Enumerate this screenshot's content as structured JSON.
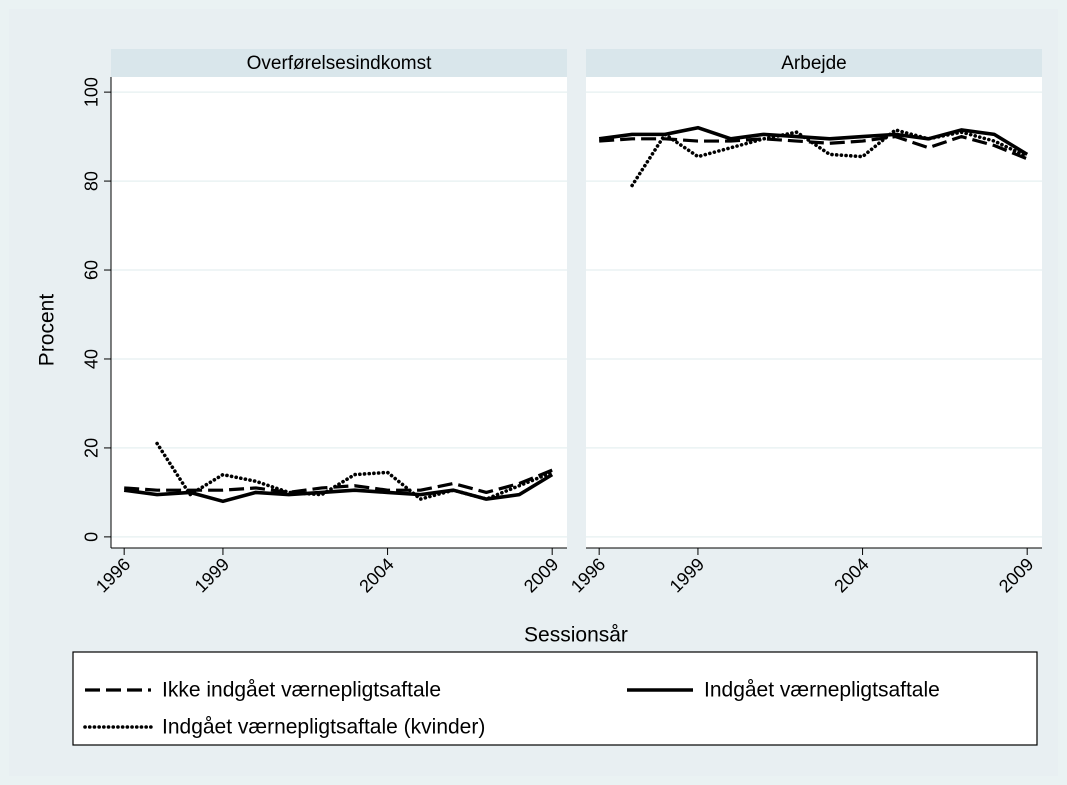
{
  "ylabel": "Procent",
  "xlabel": "Sessionsår",
  "chart_data": [
    {
      "type": "line",
      "title": "Overførelsesindkomst",
      "x": [
        1996,
        1997,
        1998,
        1999,
        2000,
        2001,
        2002,
        2003,
        2004,
        2005,
        2006,
        2007,
        2008,
        2009
      ],
      "xlim": [
        1995.6,
        2009.45
      ],
      "xticks": [
        1996,
        1999,
        2004,
        2009
      ],
      "ylim": [
        -2.5,
        103.4
      ],
      "yticks": [
        0,
        20,
        40,
        60,
        80,
        100
      ],
      "grid": true,
      "series": [
        {
          "name": "Ikke indgået værnepligtsaftale",
          "color": "#000000",
          "linestyle": "dashed",
          "values": [
            11,
            10.5,
            10.5,
            10.5,
            11,
            10,
            11,
            11.5,
            10.5,
            10.5,
            12,
            10,
            12,
            15
          ]
        },
        {
          "name": "Indgået værnepligtsaftale",
          "color": "#000000",
          "linestyle": "solid",
          "values": [
            10.5,
            9.5,
            10,
            8,
            10,
            9.5,
            10,
            10.5,
            10,
            9.5,
            10.5,
            8.5,
            9.5,
            14
          ]
        },
        {
          "name": "Indgået værnepligtsaftale (kvinder)",
          "color": "#000000",
          "linestyle": "dotted",
          "values": [
            null,
            21,
            9.5,
            14,
            12.5,
            10,
            9.5,
            14,
            14.5,
            8.5,
            10.5,
            8.5,
            11.5,
            14.5
          ]
        }
      ]
    },
    {
      "type": "line",
      "title": "Arbejde",
      "x": [
        1996,
        1997,
        1998,
        1999,
        2000,
        2001,
        2002,
        2003,
        2004,
        2005,
        2006,
        2007,
        2008,
        2009
      ],
      "xlim": [
        1995.6,
        2009.45
      ],
      "xticks": [
        1996,
        1999,
        2004,
        2009
      ],
      "ylim": [
        -2.5,
        103.4
      ],
      "yticks": [
        0,
        20,
        40,
        60,
        80,
        100
      ],
      "grid": true,
      "series": [
        {
          "name": "Ikke indgået værnepligtsaftale",
          "color": "#000000",
          "linestyle": "dashed",
          "values": [
            89,
            89.5,
            89.5,
            89,
            89,
            89.5,
            89,
            88.5,
            89,
            90,
            87.5,
            90,
            88,
            85
          ]
        },
        {
          "name": "Indgået værnepligtsaftale",
          "color": "#000000",
          "linestyle": "solid",
          "values": [
            89.5,
            90.5,
            90.5,
            92,
            89.5,
            90.5,
            90,
            89.5,
            90,
            90.5,
            89.5,
            91.5,
            90.5,
            86
          ]
        },
        {
          "name": "Indgået værnepligtsaftale (kvinder)",
          "color": "#000000",
          "linestyle": "dotted",
          "values": [
            null,
            79,
            90.5,
            85.5,
            87.5,
            89.5,
            91,
            86,
            85.5,
            91.5,
            89.5,
            91,
            89,
            85.5
          ]
        }
      ]
    }
  ]
}
